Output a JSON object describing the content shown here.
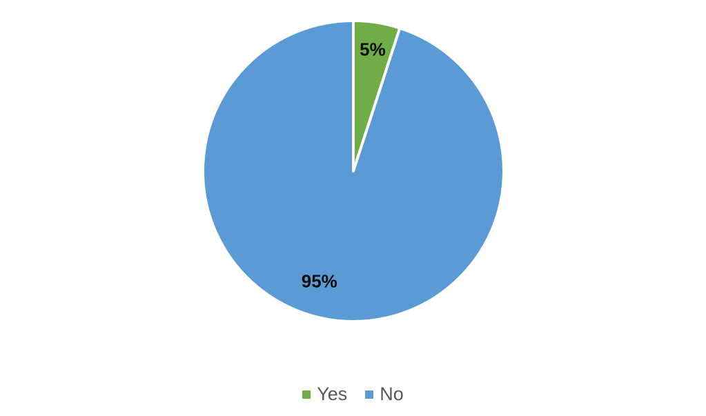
{
  "chart_data": {
    "type": "pie",
    "title": "",
    "slices": [
      {
        "label": "Yes",
        "value": 5,
        "display_label": "5%",
        "color": "#70AD47"
      },
      {
        "label": "No",
        "value": 95,
        "display_label": "95%",
        "color": "#5B9BD5"
      }
    ],
    "start_angle_deg": 0,
    "direction": "clockwise",
    "slice_border_color": "#ffffff",
    "data_label_color": "#0d0d0d",
    "legend": {
      "position": "bottom",
      "text_color": "#595959",
      "entries": [
        "Yes",
        "No"
      ]
    }
  }
}
